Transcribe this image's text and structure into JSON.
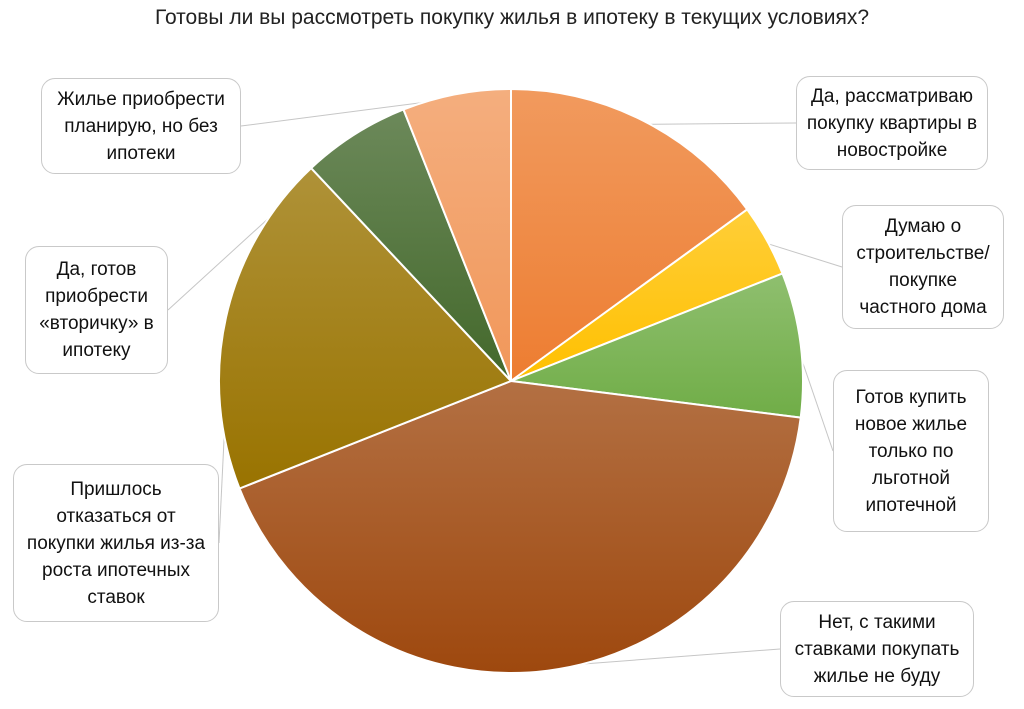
{
  "chart_data": {
    "type": "pie",
    "title": "Готовы ли вы рассмотреть покупку жилья в ипотеку в текущих условиях?",
    "series": [
      {
        "values": [
          15,
          4,
          8,
          42,
          19,
          6,
          6
        ]
      }
    ],
    "slices": [
      {
        "label": "Да, рассматриваю покупку квартиры в новостройке",
        "value": 15,
        "color": "#ed7d31"
      },
      {
        "label": "Думаю о строительстве/ покупке частного дома",
        "value": 4,
        "color": "#ffc000"
      },
      {
        "label": "Готов купить новое жилье только по льготной ипотечной",
        "value": 8,
        "color": "#70ad47"
      },
      {
        "label": "Нет, с такими ставками покупать жилье не буду",
        "value": 42,
        "color": "#9e480e"
      },
      {
        "label": "Пришлось отказаться от покупки жилья из-за роста ипотечных ставок",
        "value": 19,
        "color": "#997300"
      },
      {
        "label": "Да, готов приобрести «вторичку» в ипотеку",
        "value": 6,
        "color": "#43682b"
      },
      {
        "label": "Жилье приобрести планирую, но без ипотеки",
        "value": 6,
        "color": "#f1975a"
      }
    ],
    "legend": "callouts"
  }
}
